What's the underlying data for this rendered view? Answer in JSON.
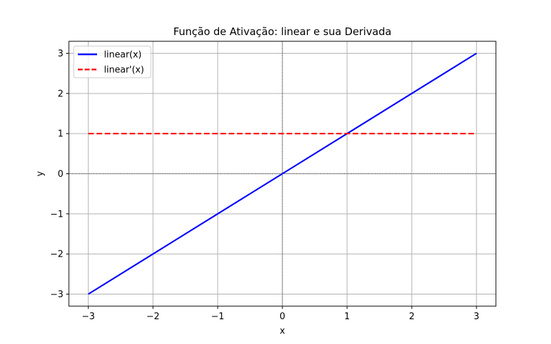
{
  "chart_data": {
    "type": "line",
    "title": "Função de Ativação: linear e sua Derivada",
    "xlabel": "x",
    "ylabel": "y",
    "xlim": [
      -3.3,
      3.3
    ],
    "ylim": [
      -3.3,
      3.3
    ],
    "xticks": [
      -3,
      -2,
      -1,
      0,
      1,
      2,
      3
    ],
    "yticks": [
      -3,
      -2,
      -1,
      0,
      1,
      2,
      3
    ],
    "xtick_labels": [
      "−3",
      "−2",
      "−1",
      "0",
      "1",
      "2",
      "3"
    ],
    "ytick_labels": [
      "−3",
      "−2",
      "−1",
      "0",
      "1",
      "2",
      "3"
    ],
    "grid": true,
    "reference_lines": {
      "x": 0,
      "y": 0,
      "color": "#000000",
      "style": "dotted"
    },
    "legend": {
      "placement": "top-left"
    },
    "series": [
      {
        "name": "linear(x)",
        "color": "#0000ff",
        "style": "solid",
        "x": [
          -3,
          -2,
          -1,
          0,
          1,
          2,
          3
        ],
        "y": [
          -3,
          -2,
          -1,
          0,
          1,
          2,
          3
        ]
      },
      {
        "name": "linear'(x)",
        "color": "#ff0000",
        "style": "dashed",
        "x": [
          -3,
          -2,
          -1,
          0,
          1,
          2,
          3
        ],
        "y": [
          1,
          1,
          1,
          1,
          1,
          1,
          1
        ]
      }
    ]
  }
}
